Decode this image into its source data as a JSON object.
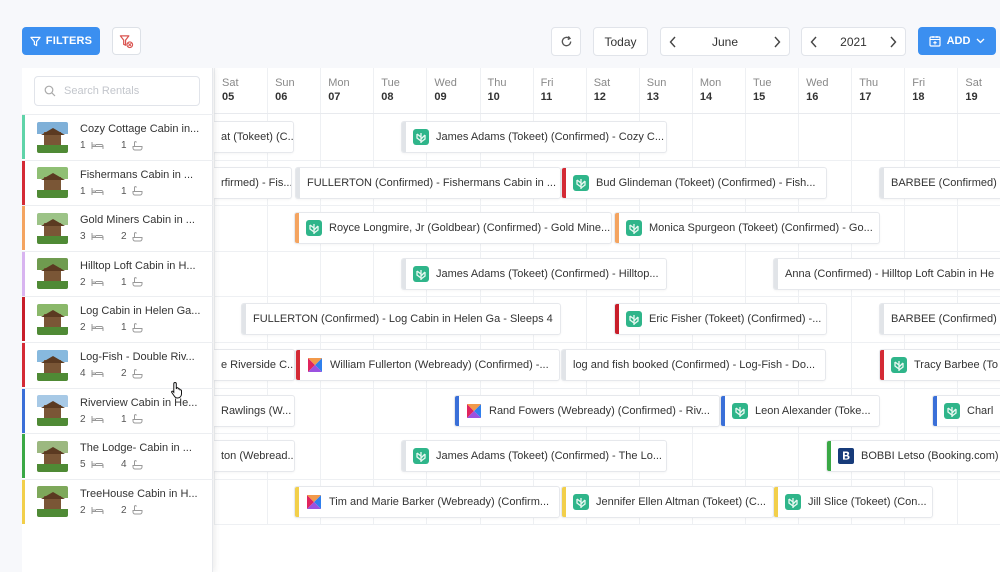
{
  "toolbar": {
    "filters_label": "FILTERS",
    "today_label": "Today",
    "month": "June",
    "year": "2021",
    "add_label": "ADD"
  },
  "search": {
    "placeholder": "Search Rentals"
  },
  "days": [
    {
      "dow": "Sat",
      "num": "05"
    },
    {
      "dow": "Sun",
      "num": "06"
    },
    {
      "dow": "Mon",
      "num": "07"
    },
    {
      "dow": "Tue",
      "num": "08"
    },
    {
      "dow": "Wed",
      "num": "09"
    },
    {
      "dow": "Thu",
      "num": "10"
    },
    {
      "dow": "Fri",
      "num": "11"
    },
    {
      "dow": "Sat",
      "num": "12"
    },
    {
      "dow": "Sun",
      "num": "13"
    },
    {
      "dow": "Mon",
      "num": "14"
    },
    {
      "dow": "Tue",
      "num": "15"
    },
    {
      "dow": "Wed",
      "num": "16"
    },
    {
      "dow": "Thu",
      "num": "17"
    },
    {
      "dow": "Fri",
      "num": "18"
    },
    {
      "dow": "Sat",
      "num": "19"
    }
  ],
  "rentals": [
    {
      "name": "Cozy Cottage Cabin in...",
      "beds": "1",
      "baths": "1",
      "color": "#5fd3a8"
    },
    {
      "name": "Fishermans Cabin in ...",
      "beds": "1",
      "baths": "1",
      "color": "#d42a35"
    },
    {
      "name": "Gold Miners Cabin in ...",
      "beds": "3",
      "baths": "2",
      "color": "#f4a460"
    },
    {
      "name": "Hilltop Loft Cabin in H...",
      "beds": "2",
      "baths": "1",
      "color": "#d8b4f0"
    },
    {
      "name": "Log Cabin in Helen Ga...",
      "beds": "2",
      "baths": "1",
      "color": "#c81e2a"
    },
    {
      "name": "Log-Fish - Double Riv...",
      "beds": "4",
      "baths": "2",
      "color": "#d42a35"
    },
    {
      "name": "Riverview Cabin in He...",
      "beds": "2",
      "baths": "1",
      "color": "#3a6fd8"
    },
    {
      "name": "The Lodge- Cabin in ...",
      "beds": "5",
      "baths": "4",
      "color": "#3aa845"
    },
    {
      "name": "TreeHouse Cabin in H...",
      "beds": "2",
      "baths": "2",
      "color": "#f2cf4a"
    }
  ],
  "bookings": [
    {
      "text": "at (Tokeet) (C...",
      "color": "",
      "source": "none"
    },
    {
      "text": "James Adams (Tokeet) (Confirmed) - Cozy C...",
      "color": "#e1e4e8",
      "source": "tokeet"
    },
    {
      "text": "rfirmed) - Fis...",
      "color": "",
      "source": "none"
    },
    {
      "text": "FULLERTON (Confirmed) - Fishermans Cabin in ...",
      "color": "#e1e4e8",
      "source": "none"
    },
    {
      "text": "Bud Glindeman (Tokeet) (Confirmed) - Fish...",
      "color": "#d42a35",
      "source": "tokeet"
    },
    {
      "text": "BARBEE (Confirmed)",
      "color": "#e1e4e8",
      "source": "none"
    },
    {
      "text": "Royce Longmire, Jr (Goldbear) (Confirmed) - Gold Mine...",
      "color": "#f4a460",
      "source": "tokeet"
    },
    {
      "text": "Monica Spurgeon (Tokeet) (Confirmed) - Go...",
      "color": "#f4a460",
      "source": "tokeet"
    },
    {
      "text": "James Adams (Tokeet) (Confirmed) - Hilltop...",
      "color": "#e1e4e8",
      "source": "tokeet"
    },
    {
      "text": "Anna (Confirmed) - Hilltop Loft Cabin in He",
      "color": "#e1e4e8",
      "source": "none"
    },
    {
      "text": "FULLERTON (Confirmed) - Log Cabin in Helen Ga - Sleeps 4",
      "color": "#e1e4e8",
      "source": "none"
    },
    {
      "text": "Eric Fisher (Tokeet) (Confirmed) -...",
      "color": "#c81e2a",
      "source": "tokeet"
    },
    {
      "text": "BARBEE (Confirmed)",
      "color": "#e1e4e8",
      "source": "none"
    },
    {
      "text": "e Riverside C...",
      "color": "",
      "source": "none"
    },
    {
      "text": "William Fullerton (Webready) (Confirmed) -...",
      "color": "#d42a35",
      "source": "webready"
    },
    {
      "text": "log and fish booked (Confirmed) - Log-Fish - Do...",
      "color": "#e1e4e8",
      "source": "none"
    },
    {
      "text": "Tracy Barbee (To",
      "color": "#d42a35",
      "source": "tokeet"
    },
    {
      "text": "Rawlings (W...",
      "color": "",
      "source": "none"
    },
    {
      "text": "Rand Fowers (Webready) (Confirmed) - Riv...",
      "color": "#3a6fd8",
      "source": "webready"
    },
    {
      "text": "Leon Alexander (Toke...",
      "color": "#3a6fd8",
      "source": "tokeet"
    },
    {
      "text": "Charl",
      "color": "#3a6fd8",
      "source": "tokeet"
    },
    {
      "text": "ton (Webread...",
      "color": "",
      "source": "none"
    },
    {
      "text": "James Adams (Tokeet) (Confirmed) - The Lo...",
      "color": "#e1e4e8",
      "source": "tokeet"
    },
    {
      "text": "BOBBI Letso (Booking.com)",
      "color": "#3aa845",
      "source": "booking"
    },
    {
      "text": "Tim and Marie Barker (Webready) (Confirm...",
      "color": "#f2cf4a",
      "source": "webready"
    },
    {
      "text": "Jennifer Ellen Altman (Tokeet) (C...",
      "color": "#f2cf4a",
      "source": "tokeet"
    },
    {
      "text": "Jill Slice (Tokeet) (Con...",
      "color": "#f2cf4a",
      "source": "tokeet"
    }
  ]
}
